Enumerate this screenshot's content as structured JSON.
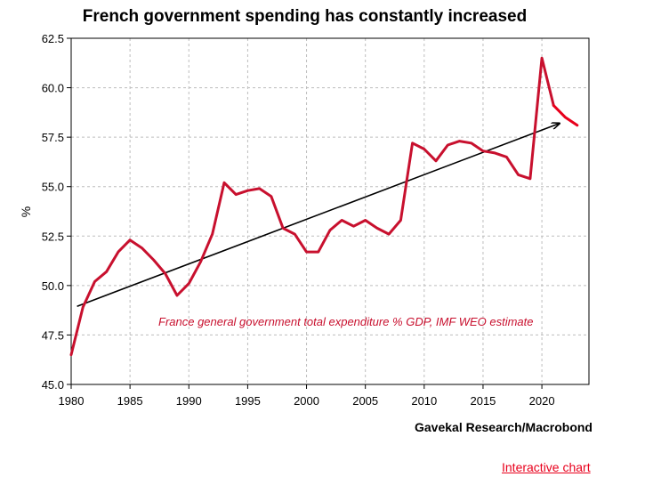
{
  "chart_data": {
    "type": "line",
    "title": "French government spending has constantly increased",
    "xlabel": "",
    "ylabel": "%",
    "xlim": [
      1980,
      2024
    ],
    "ylim": [
      45.0,
      62.5
    ],
    "x_ticks": [
      "1980",
      "1985",
      "1990",
      "1995",
      "2000",
      "2005",
      "2010",
      "2015",
      "2020"
    ],
    "y_ticks": [
      "45.0",
      "47.5",
      "50.0",
      "52.5",
      "55.0",
      "57.5",
      "60.0",
      "62.5"
    ],
    "grid": true,
    "series": [
      {
        "color": "#c8102e",
        "estimate_color": "#e8001c",
        "estimate_from": 2021,
        "x": [
          1980,
          1981,
          1982,
          1983,
          1984,
          1985,
          1986,
          1987,
          1988,
          1989,
          1990,
          1991,
          1992,
          1993,
          1994,
          1995,
          1996,
          1997,
          1998,
          1999,
          2000,
          2001,
          2002,
          2003,
          2004,
          2005,
          2006,
          2007,
          2008,
          2009,
          2010,
          2011,
          2012,
          2013,
          2014,
          2015,
          2016,
          2017,
          2018,
          2019,
          2020,
          2021,
          2022,
          2023
        ],
        "y": [
          46.5,
          48.9,
          50.2,
          50.7,
          51.7,
          52.3,
          51.9,
          51.3,
          50.6,
          49.5,
          50.1,
          51.2,
          52.6,
          55.2,
          54.6,
          54.8,
          54.9,
          54.5,
          52.9,
          52.6,
          51.7,
          51.7,
          52.8,
          53.3,
          53.0,
          53.3,
          52.9,
          52.6,
          53.3,
          57.2,
          56.9,
          56.3,
          57.1,
          57.3,
          57.2,
          56.8,
          56.7,
          56.5,
          55.6,
          55.4,
          61.5,
          59.1,
          58.5,
          58.1
        ]
      }
    ],
    "trend": {
      "x": [
        1980.5,
        2021.5
      ],
      "y": [
        48.95,
        58.2
      ],
      "color": "#000000"
    },
    "annotation": "France general government total expenditure % GDP, IMF WEO estimate"
  },
  "source": "Gavekal Research/Macrobond",
  "link_label": "Interactive chart"
}
